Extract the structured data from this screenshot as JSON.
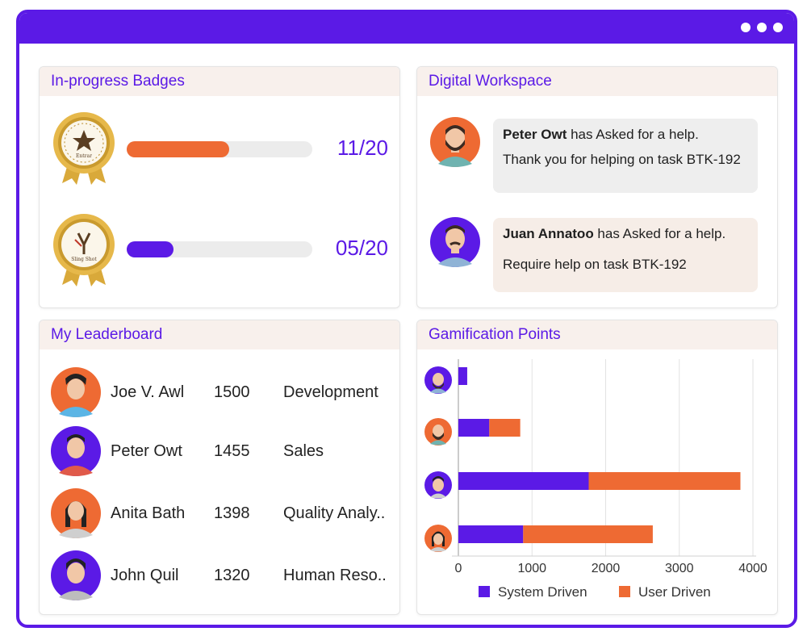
{
  "colors": {
    "accent": "#5b1ae6",
    "orange": "#ee6a33",
    "track": "#ececec",
    "headerBg": "#f8f0ec"
  },
  "badges": {
    "title": "In-progress Badges",
    "items": [
      {
        "name": "Entrar",
        "value": "11/20",
        "progress": 0.55,
        "color": "#ee6a33",
        "icon": "star-medal-icon"
      },
      {
        "name": "Sling Shot",
        "value": "05/20",
        "progress": 0.25,
        "color": "#5b1ae6",
        "icon": "slingshot-medal-icon"
      }
    ]
  },
  "workspace": {
    "title": "Digital Workspace",
    "messages": [
      {
        "name": "Peter Owt",
        "action": " has Asked for a help.",
        "text": "Thank you for helping on task BTK-192",
        "bg": "#eeeeee"
      },
      {
        "name": "Juan Annatoo",
        "action": " has Asked for a help.",
        "text": "Require help on task BTK-192",
        "bg": "#f6ede7"
      }
    ]
  },
  "leaderboard": {
    "title": "My Leaderboard",
    "rows": [
      {
        "name": "Joe V. Awl",
        "score": "1500",
        "dept": "Development"
      },
      {
        "name": "Peter Owt",
        "score": "1455",
        "dept": "Sales"
      },
      {
        "name": "Anita Bath",
        "score": "1398",
        "dept": "Quality Analy.."
      },
      {
        "name": "John Quil",
        "score": "1320",
        "dept": "Human Reso.."
      }
    ]
  },
  "chart_data": {
    "type": "bar",
    "orientation": "horizontal",
    "title": "Gamification Points",
    "categories": [
      "",
      "",
      "",
      ""
    ],
    "series": [
      {
        "name": "System Driven",
        "color": "#5b1ae6",
        "values": [
          120,
          420,
          1770,
          880
        ]
      },
      {
        "name": "User Driven",
        "color": "#ee6a33",
        "values": [
          0,
          420,
          2060,
          1760
        ]
      }
    ],
    "xlim": [
      0,
      4000
    ],
    "xticks": [
      "0",
      "1000",
      "2000",
      "3000",
      "4000"
    ],
    "grid": true,
    "legend": "bottom"
  }
}
